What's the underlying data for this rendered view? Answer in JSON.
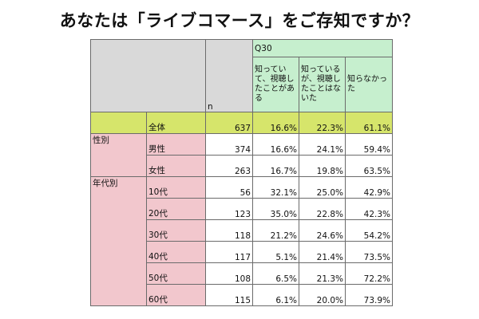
{
  "title": "あなたは「ライブコマース」をご存知ですか？",
  "colors": {
    "header_gray": "#d9d9d9",
    "header_green": "#c6efce",
    "total_row": "#d6e56b",
    "label_pink": "#f2c7cd"
  },
  "chart_data": {
    "type": "table",
    "title": "あなたは「ライブコマース」をご存知ですか？",
    "question": "Q30",
    "n_header": "n",
    "columns": [
      "知っていて、視聴したことがある",
      "知っているが、視聴したことはないた",
      "知らなかった"
    ],
    "groups": [
      {
        "label": "",
        "rows": [
          {
            "label": "全体",
            "n": "637",
            "values": [
              "16.6%",
              "22.3%",
              "61.1%"
            ]
          }
        ]
      },
      {
        "label": "性別",
        "rows": [
          {
            "label": "男性",
            "n": "374",
            "values": [
              "16.6%",
              "24.1%",
              "59.4%"
            ]
          },
          {
            "label": "女性",
            "n": "263",
            "values": [
              "16.7%",
              "19.8%",
              "63.5%"
            ]
          }
        ]
      },
      {
        "label": "年代別",
        "rows": [
          {
            "label": "10代",
            "n": "56",
            "values": [
              "32.1%",
              "25.0%",
              "42.9%"
            ]
          },
          {
            "label": "20代",
            "n": "123",
            "values": [
              "35.0%",
              "22.8%",
              "42.3%"
            ]
          },
          {
            "label": "30代",
            "n": "118",
            "values": [
              "21.2%",
              "24.6%",
              "54.2%"
            ]
          },
          {
            "label": "40代",
            "n": "117",
            "values": [
              "5.1%",
              "21.4%",
              "73.5%"
            ]
          },
          {
            "label": "50代",
            "n": "108",
            "values": [
              "6.5%",
              "21.3%",
              "72.2%"
            ]
          },
          {
            "label": "60代",
            "n": "115",
            "values": [
              "6.1%",
              "20.0%",
              "73.9%"
            ]
          }
        ]
      }
    ]
  }
}
